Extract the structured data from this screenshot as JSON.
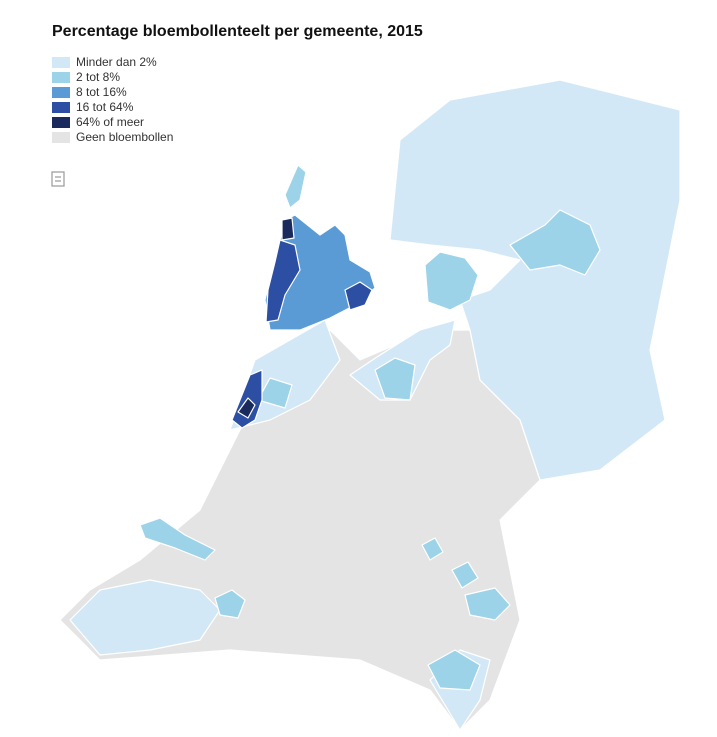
{
  "title": "Percentage bloembollenteelt per gemeente, 2015",
  "legend": [
    {
      "label": "Minder dan 2%",
      "color": "#d3e8f7"
    },
    {
      "label": "2 tot 8%",
      "color": "#9cd3e8"
    },
    {
      "label": "8 tot 16%",
      "color": "#5b9bd5"
    },
    {
      "label": "16 tot 64%",
      "color": "#2c4fa3"
    },
    {
      "label": "64% of meer",
      "color": "#1b2a5c"
    },
    {
      "label": "Geen bloembollen",
      "color": "#e4e4e4"
    }
  ]
}
